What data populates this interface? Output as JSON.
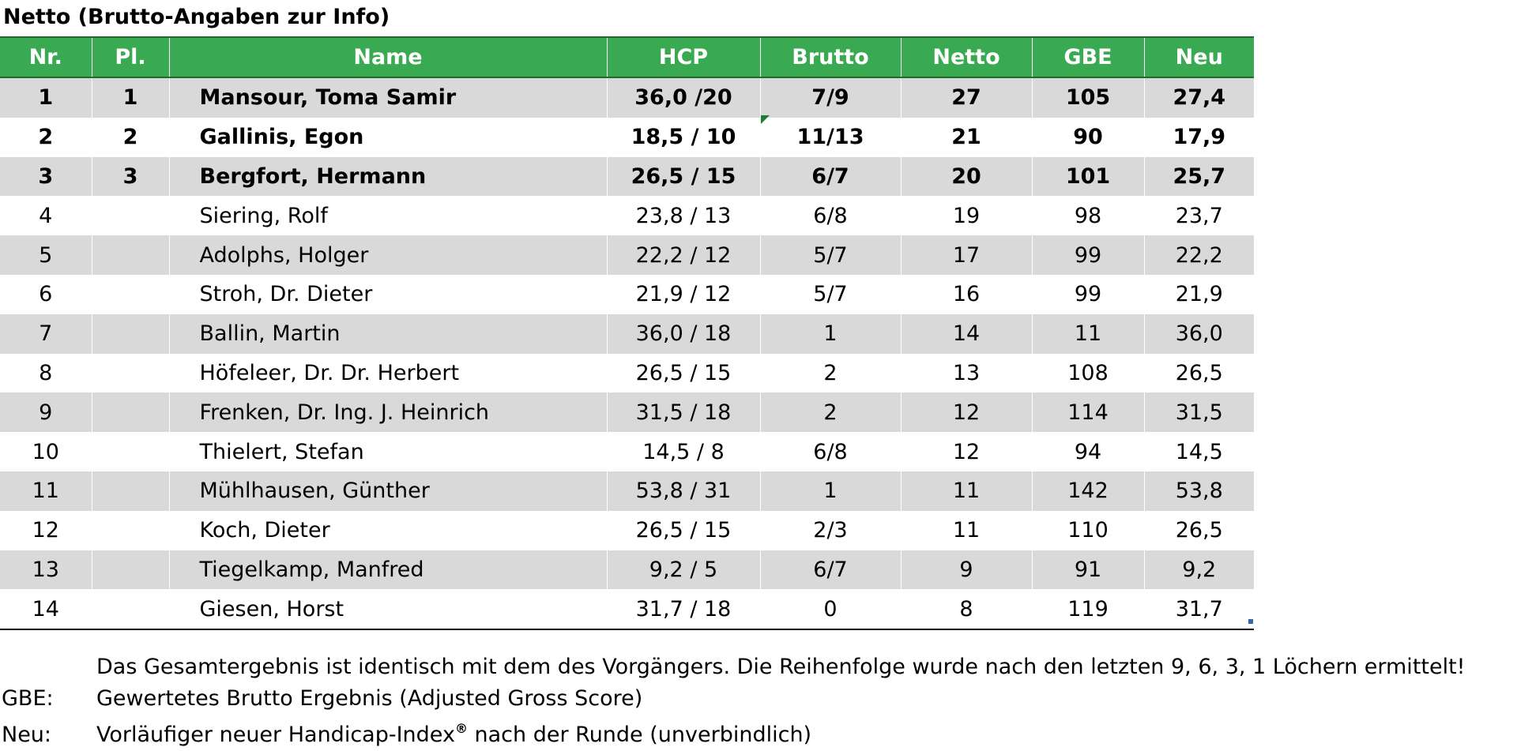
{
  "title": "Netto (Brutto-Angaben zur Info)",
  "table": {
    "headers": [
      "Nr.",
      "Pl.",
      "Name",
      "HCP",
      "Brutto",
      "Netto",
      "GBE",
      "Neu"
    ],
    "rows": [
      {
        "nr": "1",
        "pl": "1",
        "name": "Mansour, Toma Samir",
        "hcp": "36,0 /20",
        "brutto": "7/9",
        "netto": "27",
        "gbe": "105",
        "neu": "27,4"
      },
      {
        "nr": "2",
        "pl": "2",
        "name": "Gallinis, Egon",
        "hcp": "18,5 / 10",
        "brutto": "11/13",
        "netto": "21",
        "gbe": "90",
        "neu": "17,9"
      },
      {
        "nr": "3",
        "pl": "3",
        "name": "Bergfort, Hermann",
        "hcp": "26,5 / 15",
        "brutto": "6/7",
        "netto": "20",
        "gbe": "101",
        "neu": "25,7"
      },
      {
        "nr": "4",
        "pl": "",
        "name": "Siering, Rolf",
        "hcp": "23,8 / 13",
        "brutto": "6/8",
        "netto": "19",
        "gbe": "98",
        "neu": "23,7"
      },
      {
        "nr": "5",
        "pl": "",
        "name": "Adolphs, Holger",
        "hcp": "22,2 / 12",
        "brutto": "5/7",
        "netto": "17",
        "gbe": "99",
        "neu": "22,2"
      },
      {
        "nr": "6",
        "pl": "",
        "name": "Stroh, Dr. Dieter",
        "hcp": "21,9 / 12",
        "brutto": "5/7",
        "netto": "16",
        "gbe": "99",
        "neu": "21,9"
      },
      {
        "nr": "7",
        "pl": "",
        "name": "Ballin, Martin",
        "hcp": "36,0 / 18",
        "brutto": "1",
        "netto": "14",
        "gbe": "11",
        "neu": "36,0"
      },
      {
        "nr": "8",
        "pl": "",
        "name": "Höfeleer, Dr. Dr. Herbert",
        "hcp": "26,5 / 15",
        "brutto": "2",
        "netto": "13",
        "gbe": "108",
        "neu": "26,5"
      },
      {
        "nr": "9",
        "pl": "",
        "name": "Frenken, Dr. Ing. J. Heinrich",
        "hcp": "31,5 / 18",
        "brutto": "2",
        "netto": "12",
        "gbe": "114",
        "neu": "31,5"
      },
      {
        "nr": "10",
        "pl": "",
        "name": "Thielert, Stefan",
        "hcp": "14,5 / 8",
        "brutto": "6/8",
        "netto": "12",
        "gbe": "94",
        "neu": "14,5"
      },
      {
        "nr": "11",
        "pl": "",
        "name": "Mühlhausen, Günther",
        "hcp": "53,8 / 31",
        "brutto": "1",
        "netto": "11",
        "gbe": "142",
        "neu": "53,8"
      },
      {
        "nr": "12",
        "pl": "",
        "name": "Koch, Dieter",
        "hcp": "26,5 / 15",
        "brutto": "2/3",
        "netto": "11",
        "gbe": "110",
        "neu": "26,5"
      },
      {
        "nr": "13",
        "pl": "",
        "name": "Tiegelkamp, Manfred",
        "hcp": "9,2 / 5",
        "brutto": "6/7",
        "netto": "9",
        "gbe": "91",
        "neu": "9,2"
      },
      {
        "nr": "14",
        "pl": "",
        "name": "Giesen, Horst",
        "hcp": "31,7 / 18",
        "brutto": "0",
        "netto": "8",
        "gbe": "119",
        "neu": "31,7"
      }
    ]
  },
  "notes": {
    "line1": "Das Gesamtergebnis ist identisch mit dem des Vorgängers. Die Reihenfolge wurde nach den letzten 9, 6, 3, 1 Löchern ermittelt!",
    "gbe_key": "GBE:",
    "gbe_text": "Gewertetes Brutto Ergebnis (Adjusted Gross Score)",
    "neu_key": "Neu:",
    "neu_text_before": "Vorläufiger neuer Handicap-Index",
    "neu_reg": "®",
    "neu_text_after": " nach der Runde (unverbindlich)"
  },
  "colors": {
    "header_green": "#3aaa52",
    "row_shade": "#d9d9d9"
  }
}
